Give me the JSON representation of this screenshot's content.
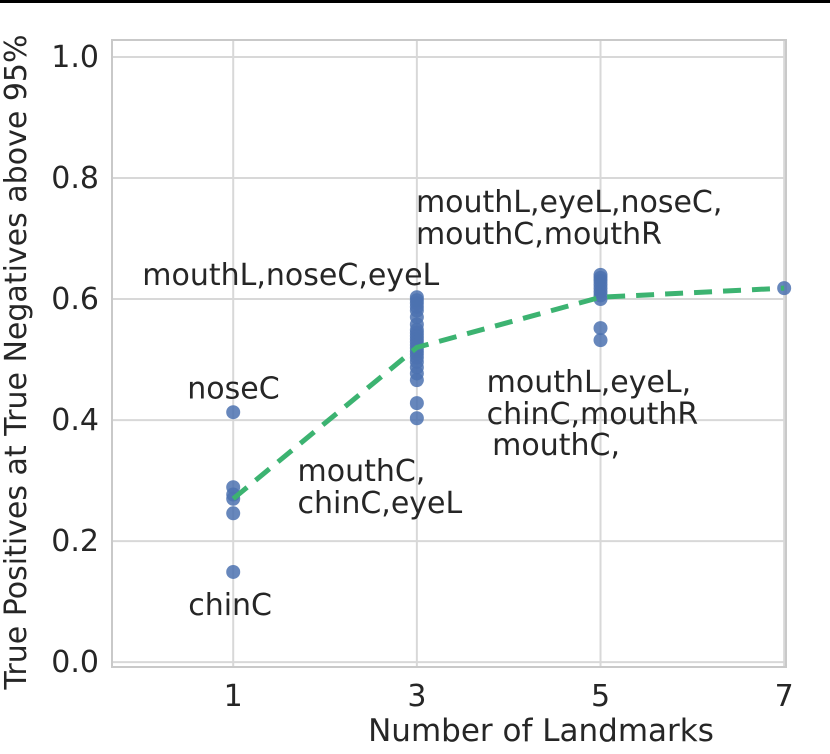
{
  "page": {
    "background": "#ffffff",
    "top_border_color": "#000000"
  },
  "chart_data": {
    "type": "scatter",
    "title": "",
    "xlabel": "Number of Landmarks",
    "ylabel": "True Positives at True Negatives above 95%",
    "grid": true,
    "legend": "none",
    "xlim": [
      -0.32,
      7.02
    ],
    "ylim": [
      -0.008,
      1.028
    ],
    "x_ticks": {
      "values": [
        1,
        3,
        5,
        7
      ],
      "labels": [
        "1",
        "3",
        "5",
        "7"
      ]
    },
    "y_ticks": {
      "values": [
        0.0,
        0.2,
        0.4,
        0.6,
        0.8,
        1.0
      ],
      "labels": [
        "0.0",
        "0.2",
        "0.4",
        "0.6",
        "0.8",
        "1.0"
      ]
    },
    "colors": {
      "point": "#4c72b0",
      "mean_line": "#3cb371",
      "text": "#262626",
      "grid": "#d8d8d8",
      "spine": "#c9c9c9"
    },
    "point_radius": 7,
    "point_opacity": 0.85,
    "scatter_groups": [
      {
        "x": 1,
        "values": [
          0.413,
          0.289,
          0.277,
          0.27,
          0.246,
          0.149
        ]
      },
      {
        "x": 3,
        "values": [
          0.603,
          0.598,
          0.593,
          0.587,
          0.581,
          0.57,
          0.558,
          0.549,
          0.544,
          0.539,
          0.534,
          0.529,
          0.524,
          0.519,
          0.514,
          0.509,
          0.503,
          0.496,
          0.487,
          0.477,
          0.466,
          0.428,
          0.403
        ]
      },
      {
        "x": 5,
        "values": [
          0.64,
          0.635,
          0.63,
          0.624,
          0.618,
          0.612,
          0.606,
          0.6,
          0.552,
          0.532
        ]
      },
      {
        "x": 7,
        "values": [
          0.618
        ]
      }
    ],
    "mean_line": {
      "name": "mean-trend",
      "style": "dashed",
      "width": 5,
      "dash": [
        18,
        11
      ],
      "points": [
        [
          1,
          0.27
        ],
        [
          3,
          0.52
        ],
        [
          5,
          0.603
        ],
        [
          7,
          0.618
        ]
      ]
    },
    "annotations": [
      {
        "lines": [
          "mouthL,eyeL,noseC,",
          "mouthC,mouthR"
        ],
        "x": 2.99,
        "y": 0.744
      },
      {
        "lines": [
          "mouthL,noseC,eyeL"
        ],
        "x": 0.01,
        "y": 0.623
      },
      {
        "lines": [
          "noseC"
        ],
        "x": 0.5,
        "y": 0.436
      },
      {
        "lines": [
          "chinC"
        ],
        "x": 0.51,
        "y": 0.078
      },
      {
        "lines": [
          "mouthC,",
          "chinC,eyeL"
        ],
        "x": 1.7,
        "y": 0.299
      },
      {
        "lines": [
          "mouthL,eyeL,",
          "chinC,mouthR"
        ],
        "x": 3.76,
        "y": 0.446
      },
      {
        "lines": [
          "mouthC,"
        ],
        "x": 3.82,
        "y": 0.342
      }
    ],
    "layout": {
      "plot_left": 112,
      "plot_top": 40,
      "plot_right": 786,
      "plot_bottom": 667,
      "tick_font_size": 30,
      "annotation_font_size": 30,
      "annotation_line_height": 32,
      "xlabel_font_size": 31,
      "ylabel_font_size": 30,
      "xlabel_center_x": 541,
      "xlabel_baseline_y": 741,
      "ylabel_center_x": 26,
      "ylabel_center_y": 362
    }
  }
}
